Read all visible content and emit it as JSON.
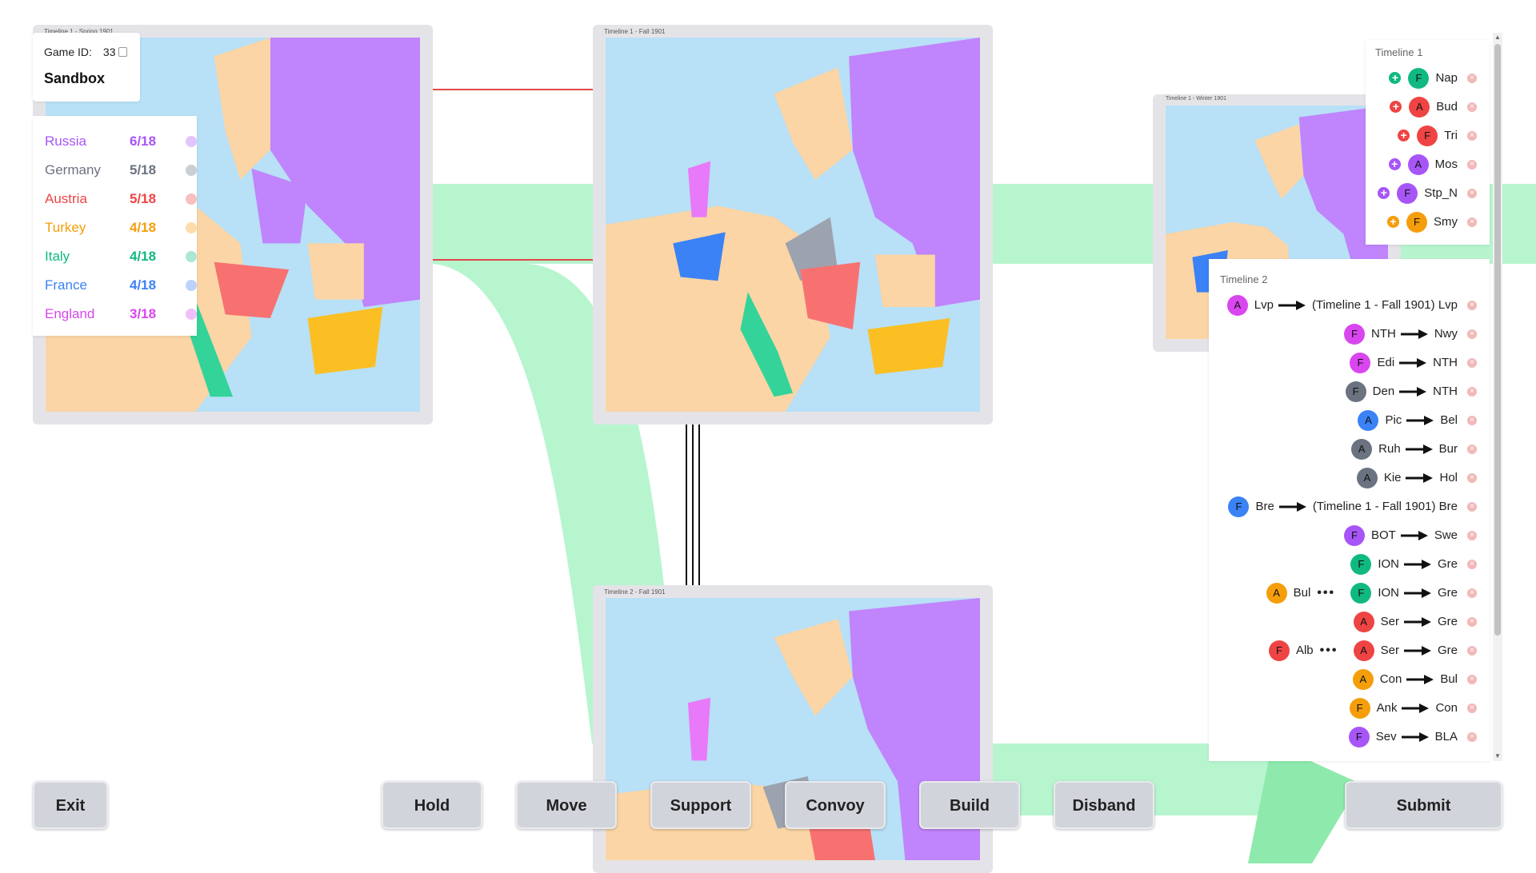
{
  "boards": {
    "b1": {
      "label": "Timeline 1 - Spring 1901"
    },
    "b2": {
      "label": "Timeline 1 - Fall 1901"
    },
    "b3": {
      "label": "Timeline 2 - Fall 1901"
    },
    "b4": {
      "label": "Timeline 1 - Winter 1901"
    }
  },
  "game": {
    "id_label": "Game ID:",
    "id_value": "33",
    "title": "Sandbox"
  },
  "scores": [
    {
      "nation": "Russia",
      "score": "6/18",
      "color": "#a855f7"
    },
    {
      "nation": "Germany",
      "score": "5/18",
      "color": "#6b7280"
    },
    {
      "nation": "Austria",
      "score": "5/18",
      "color": "#ef4444"
    },
    {
      "nation": "Turkey",
      "score": "4/18",
      "color": "#f59e0b"
    },
    {
      "nation": "Italy",
      "score": "4/18",
      "color": "#10b981"
    },
    {
      "nation": "France",
      "score": "4/18",
      "color": "#3b82f6"
    },
    {
      "nation": "England",
      "score": "3/18",
      "color": "#d946ef"
    }
  ],
  "orders": {
    "timeline1": {
      "title": "Timeline 1",
      "items": [
        {
          "unit": "F",
          "loc": "Nap",
          "color": "#10b981"
        },
        {
          "unit": "A",
          "loc": "Bud",
          "color": "#ef4444"
        },
        {
          "unit": "F",
          "loc": "Tri",
          "color": "#ef4444"
        },
        {
          "unit": "A",
          "loc": "Mos",
          "color": "#a855f7"
        },
        {
          "unit": "F",
          "loc": "Stp_N",
          "color": "#a855f7"
        },
        {
          "unit": "F",
          "loc": "Smy",
          "color": "#f59e0b"
        }
      ]
    },
    "timeline2": {
      "title": "Timeline 2",
      "items": [
        {
          "unit": "A",
          "from": "Lvp",
          "to": "(Timeline 1 - Fall 1901) Lvp",
          "color": "#d946ef"
        },
        {
          "unit": "F",
          "from": "NTH",
          "to": "Nwy",
          "color": "#d946ef"
        },
        {
          "unit": "F",
          "from": "Edi",
          "to": "NTH",
          "color": "#d946ef"
        },
        {
          "unit": "F",
          "from": "Den",
          "to": "NTH",
          "color": "#6b7280"
        },
        {
          "unit": "A",
          "from": "Pic",
          "to": "Bel",
          "color": "#3b82f6"
        },
        {
          "unit": "A",
          "from": "Ruh",
          "to": "Bur",
          "color": "#6b7280"
        },
        {
          "unit": "A",
          "from": "Kie",
          "to": "Hol",
          "color": "#6b7280"
        },
        {
          "unit": "F",
          "from": "Bre",
          "to": "(Timeline 1 - Fall 1901) Bre",
          "color": "#3b82f6"
        },
        {
          "unit": "F",
          "from": "BOT",
          "to": "Swe",
          "color": "#a855f7"
        },
        {
          "unit": "F",
          "from": "ION",
          "to": "Gre",
          "color": "#10b981"
        },
        {
          "unit": "F",
          "from": "ION",
          "to": "Gre",
          "color": "#10b981",
          "supporter": {
            "unit": "A",
            "loc": "Bul",
            "color": "#f59e0b"
          }
        },
        {
          "unit": "A",
          "from": "Ser",
          "to": "Gre",
          "color": "#ef4444"
        },
        {
          "unit": "A",
          "from": "Ser",
          "to": "Gre",
          "color": "#ef4444",
          "supporter": {
            "unit": "F",
            "loc": "Alb",
            "color": "#ef4444"
          }
        },
        {
          "unit": "A",
          "from": "Con",
          "to": "Bul",
          "color": "#f59e0b"
        },
        {
          "unit": "F",
          "from": "Ank",
          "to": "Con",
          "color": "#f59e0b"
        },
        {
          "unit": "F",
          "from": "Sev",
          "to": "BLA",
          "color": "#a855f7"
        }
      ]
    }
  },
  "buttons": {
    "exit": "Exit",
    "hold": "Hold",
    "move": "Move",
    "support": "Support",
    "convoy": "Convoy",
    "build": "Build",
    "disband": "Disband",
    "submit": "Submit"
  }
}
